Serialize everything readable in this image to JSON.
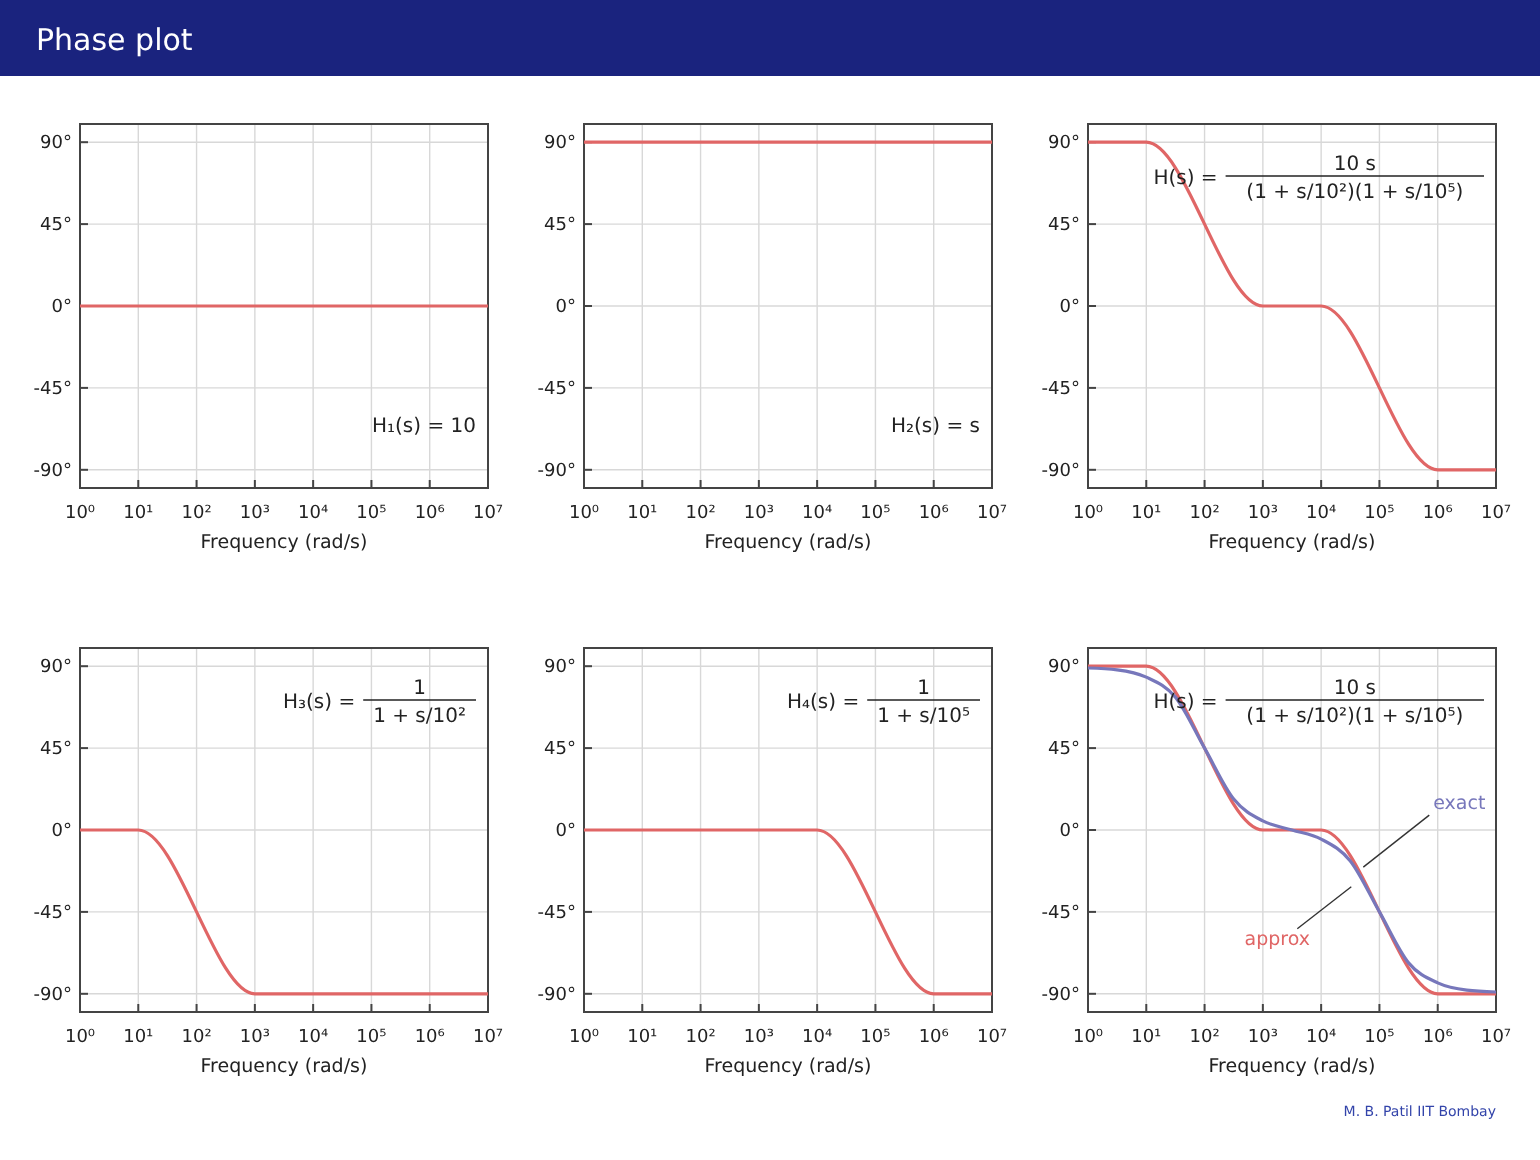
{
  "chart_data": [
    {
      "type": "line",
      "title": "Phase plot",
      "xlabel": "Frequency (rad/s)",
      "log": "x",
      "grid": true,
      "xlim": [
        1,
        10000000
      ],
      "ylim": [
        -100,
        100
      ],
      "xticks": [
        {
          "value": 1,
          "label": "10⁰"
        },
        {
          "value": 10,
          "label": "10¹"
        },
        {
          "value": 100,
          "label": "10²"
        },
        {
          "value": 1000,
          "label": "10³"
        },
        {
          "value": 10000,
          "label": "10⁴"
        },
        {
          "value": 100000,
          "label": "10⁵"
        },
        {
          "value": 1000000,
          "label": "10⁶"
        },
        {
          "value": 10000000,
          "label": "10⁷"
        }
      ],
      "yticks": [
        {
          "value": -90,
          "label": "-90°"
        },
        {
          "value": -45,
          "label": "-45°"
        },
        {
          "value": 0,
          "label": "0°"
        },
        {
          "value": 45,
          "label": "45°"
        },
        {
          "value": 90,
          "label": "90°"
        }
      ],
      "annotations": [
        "H₁(s) = 10"
      ],
      "series": [
        {
          "color": "#e06666",
          "x": [
            1,
            10000000
          ],
          "values": [
            0,
            0
          ]
        }
      ]
    },
    {
      "type": "line",
      "xlabel": "Frequency (rad/s)",
      "log": "x",
      "grid": true,
      "xlim": [
        1,
        10000000
      ],
      "ylim": [
        -100,
        100
      ],
      "xticks": [
        {
          "value": 1,
          "label": "10⁰"
        },
        {
          "value": 10,
          "label": "10¹"
        },
        {
          "value": 100,
          "label": "10²"
        },
        {
          "value": 1000,
          "label": "10³"
        },
        {
          "value": 10000,
          "label": "10⁴"
        },
        {
          "value": 100000,
          "label": "10⁵"
        },
        {
          "value": 1000000,
          "label": "10⁶"
        },
        {
          "value": 10000000,
          "label": "10⁷"
        }
      ],
      "yticks": [
        {
          "value": -90,
          "label": "-90°"
        },
        {
          "value": -45,
          "label": "-45°"
        },
        {
          "value": 0,
          "label": "0°"
        },
        {
          "value": 45,
          "label": "45°"
        },
        {
          "value": 90,
          "label": "90°"
        }
      ],
      "annotations": [
        "H₂(s) = s"
      ],
      "series": [
        {
          "color": "#e06666",
          "x": [
            1,
            10000000
          ],
          "values": [
            90,
            90
          ]
        }
      ]
    },
    {
      "type": "line",
      "xlabel": "Frequency (rad/s)",
      "log": "x",
      "grid": true,
      "xlim": [
        1,
        10000000
      ],
      "ylim": [
        -100,
        100
      ],
      "xticks": [
        {
          "value": 1,
          "label": "10⁰"
        },
        {
          "value": 10,
          "label": "10¹"
        },
        {
          "value": 100,
          "label": "10²"
        },
        {
          "value": 1000,
          "label": "10³"
        },
        {
          "value": 10000,
          "label": "10⁴"
        },
        {
          "value": 100000,
          "label": "10⁵"
        },
        {
          "value": 1000000,
          "label": "10⁶"
        },
        {
          "value": 10000000,
          "label": "10⁷"
        }
      ],
      "yticks": [
        {
          "value": -90,
          "label": "-90°"
        },
        {
          "value": -45,
          "label": "-45°"
        },
        {
          "value": 0,
          "label": "0°"
        },
        {
          "value": 45,
          "label": "45°"
        },
        {
          "value": 90,
          "label": "90°"
        }
      ],
      "annotations": [
        "H(s) =",
        "10 s",
        "(1 + s/10²)(1 + s/10⁵)"
      ],
      "series": [
        {
          "color": "#e06666",
          "x": [
            1,
            10,
            1000,
            10000,
            1000000,
            10000000
          ],
          "values": [
            90,
            90,
            0,
            0,
            -90,
            -90
          ]
        }
      ]
    },
    {
      "type": "line",
      "xlabel": "Frequency (rad/s)",
      "log": "x",
      "grid": true,
      "xlim": [
        1,
        10000000
      ],
      "ylim": [
        -100,
        100
      ],
      "xticks": [
        {
          "value": 1,
          "label": "10⁰"
        },
        {
          "value": 10,
          "label": "10¹"
        },
        {
          "value": 100,
          "label": "10²"
        },
        {
          "value": 1000,
          "label": "10³"
        },
        {
          "value": 10000,
          "label": "10⁴"
        },
        {
          "value": 100000,
          "label": "10⁵"
        },
        {
          "value": 1000000,
          "label": "10⁶"
        },
        {
          "value": 10000000,
          "label": "10⁷"
        }
      ],
      "yticks": [
        {
          "value": -90,
          "label": "-90°"
        },
        {
          "value": -45,
          "label": "-45°"
        },
        {
          "value": 0,
          "label": "0°"
        },
        {
          "value": 45,
          "label": "45°"
        },
        {
          "value": 90,
          "label": "90°"
        }
      ],
      "annotations": [
        "H₃(s) =",
        "1",
        "1 + s/10²"
      ],
      "series": [
        {
          "color": "#e06666",
          "x": [
            1,
            10,
            1000,
            10000000
          ],
          "values": [
            0,
            0,
            -90,
            -90
          ]
        }
      ]
    },
    {
      "type": "line",
      "xlabel": "Frequency (rad/s)",
      "log": "x",
      "grid": true,
      "xlim": [
        1,
        10000000
      ],
      "ylim": [
        -100,
        100
      ],
      "xticks": [
        {
          "value": 1,
          "label": "10⁰"
        },
        {
          "value": 10,
          "label": "10¹"
        },
        {
          "value": 100,
          "label": "10²"
        },
        {
          "value": 1000,
          "label": "10³"
        },
        {
          "value": 10000,
          "label": "10⁴"
        },
        {
          "value": 100000,
          "label": "10⁵"
        },
        {
          "value": 1000000,
          "label": "10⁶"
        },
        {
          "value": 10000000,
          "label": "10⁷"
        }
      ],
      "yticks": [
        {
          "value": -90,
          "label": "-90°"
        },
        {
          "value": -45,
          "label": "-45°"
        },
        {
          "value": 0,
          "label": "0°"
        },
        {
          "value": 45,
          "label": "45°"
        },
        {
          "value": 90,
          "label": "90°"
        }
      ],
      "annotations": [
        "H₄(s) =",
        "1",
        "1 + s/10⁵"
      ],
      "series": [
        {
          "color": "#e06666",
          "x": [
            1,
            10000,
            1000000,
            10000000
          ],
          "values": [
            0,
            0,
            -90,
            -90
          ]
        }
      ]
    },
    {
      "type": "line",
      "xlabel": "Frequency (rad/s)",
      "log": "x",
      "grid": true,
      "xlim": [
        1,
        10000000
      ],
      "ylim": [
        -100,
        100
      ],
      "xticks": [
        {
          "value": 1,
          "label": "10⁰"
        },
        {
          "value": 10,
          "label": "10¹"
        },
        {
          "value": 100,
          "label": "10²"
        },
        {
          "value": 1000,
          "label": "10³"
        },
        {
          "value": 10000,
          "label": "10⁴"
        },
        {
          "value": 100000,
          "label": "10⁵"
        },
        {
          "value": 1000000,
          "label": "10⁶"
        },
        {
          "value": 10000000,
          "label": "10⁷"
        }
      ],
      "yticks": [
        {
          "value": -90,
          "label": "-90°"
        },
        {
          "value": -45,
          "label": "-45°"
        },
        {
          "value": 0,
          "label": "0°"
        },
        {
          "value": 45,
          "label": "45°"
        },
        {
          "value": 90,
          "label": "90°"
        }
      ],
      "annotations": [
        "H(s) =",
        "10 s",
        "(1 + s/10²)(1 + s/10⁵)",
        "M. B. Patil IIT Bombay"
      ],
      "series": [
        {
          "name": "approx",
          "color": "#e06666",
          "x": [
            1,
            10,
            1000,
            10000,
            1000000,
            10000000
          ],
          "values": [
            90,
            90,
            0,
            0,
            -90,
            -90
          ]
        },
        {
          "name": "exact",
          "color": "#7777bb",
          "x": [
            1,
            3.16,
            10,
            31.6,
            100,
            316,
            1000,
            3162,
            10000,
            31623,
            100000,
            316228,
            1000000,
            3162278,
            10000000
          ],
          "values": [
            89,
            88,
            84,
            73,
            45,
            17,
            5,
            0,
            -5,
            -17,
            -45,
            -73,
            -84,
            -88,
            -89
          ]
        }
      ]
    }
  ]
}
